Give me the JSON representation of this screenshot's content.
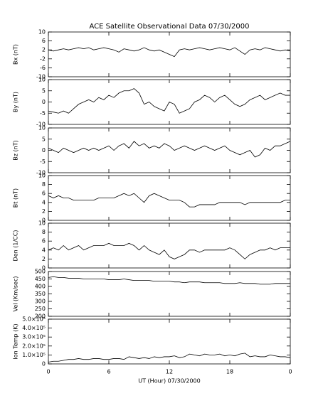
{
  "title": "ACE Satellite Observational Data   07/30/2000",
  "chart_data": [
    {
      "type": "line",
      "ylabel": "Bx (nT)",
      "color": "#000000",
      "x": [
        0,
        0.5,
        1,
        1.5,
        2,
        2.5,
        3,
        3.5,
        4,
        4.5,
        5,
        5.5,
        6,
        6.5,
        7,
        7.5,
        8,
        8.5,
        9,
        9.5,
        10,
        10.5,
        11,
        11.5,
        12,
        12.5,
        13,
        13.5,
        14,
        14.5,
        15,
        15.5,
        16,
        16.5,
        17,
        17.5,
        18,
        18.5,
        19,
        19.5,
        20,
        20.5,
        21,
        21.5,
        22,
        22.5,
        23,
        23.5,
        24
      ],
      "values": [
        2,
        1.5,
        2,
        2.5,
        2,
        2.5,
        3,
        2.5,
        3,
        2,
        2.5,
        3,
        2.5,
        2,
        1,
        2.5,
        2,
        1.5,
        2,
        3,
        2,
        1.5,
        2,
        1,
        0,
        -1,
        2,
        2.5,
        2,
        2.5,
        3,
        2.5,
        2,
        2.5,
        3,
        2.5,
        2,
        3,
        1.5,
        0,
        2,
        2.5,
        2,
        3,
        2.5,
        2,
        1.5,
        2,
        1.5
      ],
      "xlim": [
        0,
        24
      ],
      "xticks": [
        0,
        6,
        12,
        18,
        24
      ],
      "ylim": [
        -10,
        10
      ],
      "yticks": [
        -10,
        -6,
        -2,
        2,
        6,
        10
      ]
    },
    {
      "type": "line",
      "ylabel": "By (nT)",
      "color": "#000000",
      "x": [
        0,
        0.5,
        1,
        1.5,
        2,
        2.5,
        3,
        3.5,
        4,
        4.5,
        5,
        5.5,
        6,
        6.5,
        7,
        7.5,
        8,
        8.5,
        9,
        9.5,
        10,
        10.5,
        11,
        11.5,
        12,
        12.5,
        13,
        13.5,
        14,
        14.5,
        15,
        15.5,
        16,
        16.5,
        17,
        17.5,
        18,
        18.5,
        19,
        19.5,
        20,
        20.5,
        21,
        21.5,
        22,
        22.5,
        23,
        23.5,
        24
      ],
      "values": [
        -4,
        -4.5,
        -5,
        -4,
        -5,
        -3,
        -1,
        0,
        1,
        0,
        2,
        1,
        3,
        2,
        4,
        5,
        5,
        6,
        4,
        -1,
        0,
        -2,
        -3,
        -4,
        0,
        -1,
        -5,
        -4,
        -3,
        0,
        1,
        3,
        2,
        0,
        2,
        3,
        1,
        -1,
        -2,
        -1,
        1,
        2,
        3,
        1,
        2,
        3,
        4,
        3,
        3
      ],
      "xlim": [
        0,
        24
      ],
      "xticks": [
        0,
        6,
        12,
        18,
        24
      ],
      "ylim": [
        -10,
        10
      ],
      "yticks": [
        -10,
        -5,
        0,
        5,
        10
      ]
    },
    {
      "type": "line",
      "ylabel": "Bz (nT)",
      "color": "#000000",
      "x": [
        0,
        0.5,
        1,
        1.5,
        2,
        2.5,
        3,
        3.5,
        4,
        4.5,
        5,
        5.5,
        6,
        6.5,
        7,
        7.5,
        8,
        8.5,
        9,
        9.5,
        10,
        10.5,
        11,
        11.5,
        12,
        12.5,
        13,
        13.5,
        14,
        14.5,
        15,
        15.5,
        16,
        16.5,
        17,
        17.5,
        18,
        18.5,
        19,
        19.5,
        20,
        20.5,
        21,
        21.5,
        22,
        22.5,
        23,
        23.5,
        24
      ],
      "values": [
        1,
        0,
        -1,
        1,
        0,
        -1,
        0,
        1,
        0,
        1,
        0,
        1,
        2,
        0,
        2,
        3,
        1,
        4,
        2,
        3,
        1,
        2,
        1,
        3,
        2,
        0,
        1,
        2,
        1,
        0,
        1,
        2,
        1,
        0,
        1,
        2,
        0,
        -1,
        -2,
        -1,
        0,
        -3,
        -2,
        1,
        0,
        2,
        2,
        3,
        4
      ],
      "xlim": [
        0,
        24
      ],
      "xticks": [
        0,
        6,
        12,
        18,
        24
      ],
      "ylim": [
        -10,
        10
      ],
      "yticks": [
        -10,
        -5,
        0,
        5,
        10
      ]
    },
    {
      "type": "line",
      "ylabel": "Bt (nT)",
      "color": "#000000",
      "x": [
        0,
        0.5,
        1,
        1.5,
        2,
        2.5,
        3,
        3.5,
        4,
        4.5,
        5,
        5.5,
        6,
        6.5,
        7,
        7.5,
        8,
        8.5,
        9,
        9.5,
        10,
        10.5,
        11,
        11.5,
        12,
        12.5,
        13,
        13.5,
        14,
        14.5,
        15,
        15.5,
        16,
        16.5,
        17,
        17.5,
        18,
        18.5,
        19,
        19.5,
        20,
        20.5,
        21,
        21.5,
        22,
        22.5,
        23,
        23.5,
        24
      ],
      "values": [
        5.5,
        5,
        5.5,
        5,
        5,
        4.5,
        4.5,
        4.5,
        4.5,
        4.5,
        5,
        5,
        5,
        5,
        5.5,
        6,
        5.5,
        6,
        5,
        4,
        5.5,
        6,
        5.5,
        5,
        4.5,
        4.5,
        4.5,
        4,
        3,
        3,
        3.5,
        3.5,
        3.5,
        3.5,
        4,
        4,
        4,
        4,
        4,
        3.5,
        4,
        4,
        4,
        4,
        4,
        4,
        4,
        4.5,
        4.5
      ],
      "xlim": [
        0,
        24
      ],
      "xticks": [
        0,
        6,
        12,
        18,
        24
      ],
      "ylim": [
        0,
        10
      ],
      "yticks": [
        0,
        2,
        4,
        6,
        8,
        10
      ]
    },
    {
      "type": "line",
      "ylabel": "Den (1/CC)",
      "color": "#000000",
      "x": [
        0,
        0.5,
        1,
        1.5,
        2,
        2.5,
        3,
        3.5,
        4,
        4.5,
        5,
        5.5,
        6,
        6.5,
        7,
        7.5,
        8,
        8.5,
        9,
        9.5,
        10,
        10.5,
        11,
        11.5,
        12,
        12.5,
        13,
        13.5,
        14,
        14.5,
        15,
        15.5,
        16,
        16.5,
        17,
        17.5,
        18,
        18.5,
        19,
        19.5,
        20,
        20.5,
        21,
        21.5,
        22,
        22.5,
        23,
        23.5,
        24
      ],
      "values": [
        4,
        4.5,
        4,
        5,
        4,
        4.5,
        5,
        4,
        4.5,
        5,
        5,
        5,
        5.5,
        5,
        5,
        5,
        5.5,
        5,
        4,
        5,
        4,
        3.5,
        3,
        4,
        2.5,
        2,
        2.5,
        3,
        4,
        4,
        3.5,
        4,
        4,
        4,
        4,
        4,
        4.5,
        4,
        3,
        2,
        3,
        3.5,
        4,
        4,
        4.5,
        4,
        4.5,
        4.5,
        4.5
      ],
      "xlim": [
        0,
        24
      ],
      "xticks": [
        0,
        6,
        12,
        18,
        24
      ],
      "ylim": [
        0,
        10
      ],
      "yticks": [
        0,
        2,
        4,
        6,
        8,
        10
      ]
    },
    {
      "type": "line",
      "ylabel": "Vel (Km/sec)",
      "color": "#000000",
      "x": [
        0,
        0.5,
        1,
        1.5,
        2,
        2.5,
        3,
        3.5,
        4,
        4.5,
        5,
        5.5,
        6,
        6.5,
        7,
        7.5,
        8,
        8.5,
        9,
        9.5,
        10,
        10.5,
        11,
        11.5,
        12,
        12.5,
        13,
        13.5,
        14,
        14.5,
        15,
        15.5,
        16,
        16.5,
        17,
        17.5,
        18,
        18.5,
        19,
        19.5,
        20,
        20.5,
        21,
        21.5,
        22,
        22.5,
        23,
        23.5,
        24
      ],
      "values": [
        460,
        465,
        460,
        460,
        455,
        455,
        455,
        450,
        450,
        450,
        450,
        450,
        445,
        445,
        445,
        450,
        445,
        440,
        440,
        440,
        440,
        435,
        435,
        435,
        435,
        430,
        430,
        425,
        430,
        430,
        430,
        425,
        425,
        425,
        425,
        420,
        420,
        420,
        425,
        420,
        420,
        420,
        415,
        415,
        415,
        420,
        420,
        420,
        420
      ],
      "xlim": [
        0,
        24
      ],
      "xticks": [
        0,
        6,
        12,
        18,
        24
      ],
      "ylim": [
        200,
        500
      ],
      "yticks": [
        200,
        250,
        300,
        350,
        400,
        450,
        500
      ]
    },
    {
      "type": "line",
      "ylabel": "Ion Temp (K)",
      "xlabel": "UT (Hour)  07/30/2000",
      "color": "#000000",
      "x": [
        0,
        0.5,
        1,
        1.5,
        2,
        2.5,
        3,
        3.5,
        4,
        4.5,
        5,
        5.5,
        6,
        6.5,
        7,
        7.5,
        8,
        8.5,
        9,
        9.5,
        10,
        10.5,
        11,
        11.5,
        12,
        12.5,
        13,
        13.5,
        14,
        14.5,
        15,
        15.5,
        16,
        16.5,
        17,
        17.5,
        18,
        18.5,
        19,
        19.5,
        20,
        20.5,
        21,
        21.5,
        22,
        22.5,
        23,
        23.5,
        24
      ],
      "values": [
        20000,
        30000,
        30000,
        40000,
        50000,
        50000,
        60000,
        50000,
        50000,
        60000,
        60000,
        50000,
        50000,
        60000,
        60000,
        50000,
        80000,
        70000,
        60000,
        70000,
        60000,
        80000,
        70000,
        80000,
        80000,
        90000,
        70000,
        80000,
        110000,
        100000,
        90000,
        110000,
        100000,
        100000,
        110000,
        90000,
        100000,
        90000,
        110000,
        120000,
        80000,
        90000,
        80000,
        80000,
        100000,
        90000,
        80000,
        80000,
        70000
      ],
      "xlim": [
        0,
        24
      ],
      "xticks": [
        0,
        6,
        12,
        18,
        {
          "value": 24,
          "label": "0"
        }
      ],
      "ylim": [
        0,
        500000
      ],
      "yticks": [
        0,
        {
          "value": 100000,
          "label": "1.0×10⁵"
        },
        {
          "value": 200000,
          "label": "2.0×10⁵"
        },
        {
          "value": 300000,
          "label": "3.0×10⁵"
        },
        {
          "value": 400000,
          "label": "4.0×10⁵"
        },
        {
          "value": 500000,
          "label": "5.0×10⁵"
        }
      ]
    }
  ]
}
